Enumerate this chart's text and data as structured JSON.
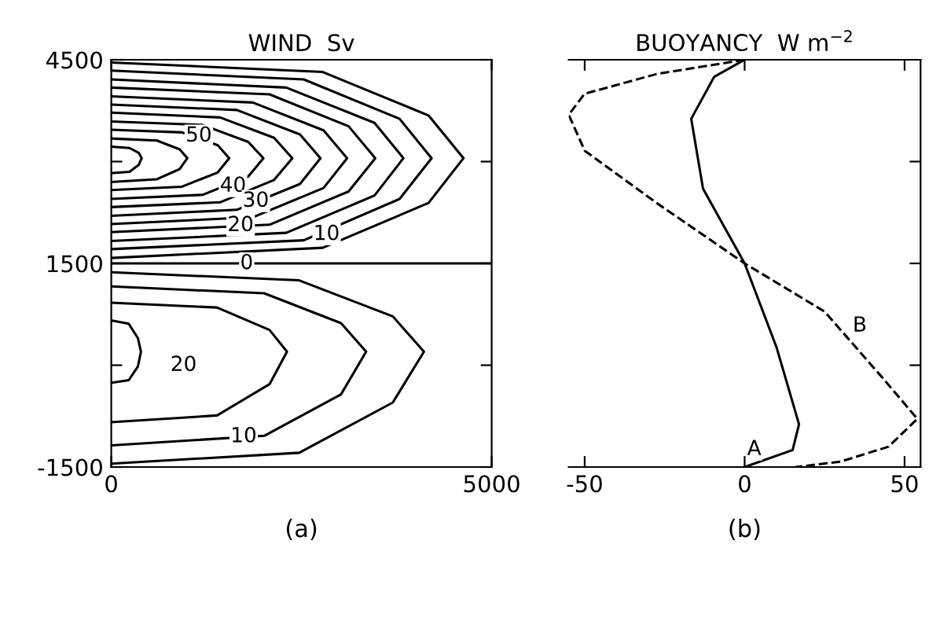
{
  "chart_data": [
    {
      "type": "line",
      "title": "WIND  Sv",
      "xlabel": "(a)",
      "line_style": "solid",
      "xlim": [
        0,
        5000
      ],
      "ylim": [
        -1500,
        4500
      ],
      "xticks": [
        0,
        5000
      ],
      "yticks": [
        -1500,
        {
          "value": 0,
          "label": null
        },
        1500,
        {
          "value": 3000,
          "label": null
        },
        4500
      ],
      "series": [
        {
          "color": "#000000",
          "x": [
            0,
            2780,
            4170,
            4630,
            4170,
            2780,
            0
          ],
          "values": [
            4460,
            4320,
            3680,
            3050,
            2390,
            1730,
            1580
          ]
        },
        {
          "color": "#000000",
          "x": [
            0,
            2530,
            3790,
            4210,
            3790,
            2530,
            0
          ],
          "values": [
            4340,
            4210,
            3630,
            3050,
            2450,
            1840,
            1710
          ]
        },
        {
          "color": "#000000",
          "x": [
            0,
            2300,
            3460,
            3840,
            3460,
            2300,
            0
          ],
          "values": [
            4210,
            4090,
            3570,
            3050,
            2500,
            1950,
            1830
          ]
        },
        {
          "color": "#000000",
          "x": [
            0,
            2080,
            3120,
            3470,
            3120,
            2080,
            0
          ],
          "values": [
            4090,
            3990,
            3520,
            3050,
            2560,
            2070,
            1960
          ]
        },
        {
          "color": "#000000",
          "x": [
            0,
            1860,
            2790,
            3100,
            2790,
            1860,
            0
          ],
          "values": [
            3960,
            3870,
            3460,
            3050,
            2610,
            2180,
            2080
          ]
        },
        {
          "color": "#000000",
          "x": [
            0,
            1650,
            2480,
            2750,
            2480,
            1650,
            0
          ],
          "values": [
            3840,
            3760,
            3400,
            3050,
            2670,
            2290,
            2200
          ]
        },
        {
          "color": "#000000",
          "x": [
            0,
            1430,
            2140,
            2380,
            2140,
            1430,
            0
          ],
          "values": [
            3720,
            3650,
            3350,
            3050,
            2730,
            2400,
            2330
          ]
        },
        {
          "color": "#000000",
          "x": [
            0,
            1200,
            1800,
            2000,
            1800,
            1200,
            0
          ],
          "values": [
            3590,
            3540,
            3290,
            3050,
            2780,
            2510,
            2450
          ]
        },
        {
          "color": "#000000",
          "x": [
            0,
            930,
            1400,
            1550,
            1400,
            930,
            0
          ],
          "values": [
            3470,
            3430,
            3240,
            3050,
            2840,
            2630,
            2580
          ]
        },
        {
          "color": "#000000",
          "x": [
            0,
            600,
            900,
            1000,
            900,
            600,
            0
          ],
          "values": [
            3340,
            3310,
            3180,
            3050,
            2890,
            2740,
            2700
          ]
        },
        {
          "color": "#000000",
          "x": [
            0,
            240,
            360,
            400,
            360,
            240,
            0
          ],
          "values": [
            3220,
            3200,
            3130,
            3050,
            2950,
            2850,
            2830
          ]
        },
        {
          "color": "#000000",
          "x": [
            0,
            5000
          ],
          "values": [
            1500,
            1500
          ]
        },
        {
          "color": "#000000",
          "x": [
            0,
            2470,
            3700,
            4110,
            3700,
            2470,
            0
          ],
          "values": [
            1370,
            1250,
            720,
            200,
            -550,
            -1290,
            -1450
          ]
        },
        {
          "color": "#000000",
          "x": [
            0,
            2010,
            3020,
            3350,
            3020,
            2010,
            0
          ],
          "values": [
            1160,
            1060,
            620,
            200,
            -430,
            -1040,
            -1180
          ]
        },
        {
          "color": "#000000",
          "x": [
            0,
            1390,
            2080,
            2310,
            2080,
            1390,
            0
          ],
          "values": [
            920,
            850,
            520,
            200,
            -280,
            -740,
            -840
          ]
        },
        {
          "color": "#000000",
          "x": [
            0,
            230,
            350,
            390,
            350,
            230,
            0
          ],
          "values": [
            660,
            610,
            400,
            200,
            -20,
            -220,
            -260
          ]
        }
      ],
      "annotations": [
        {
          "text": "50",
          "x": 1150,
          "y": 3380
        },
        {
          "text": "40",
          "x": 1600,
          "y": 2640
        },
        {
          "text": "30",
          "x": 1900,
          "y": 2420
        },
        {
          "text": "20",
          "x": 1700,
          "y": 2060
        },
        {
          "text": "10",
          "x": 2830,
          "y": 1930
        },
        {
          "text": "0",
          "x": 1780,
          "y": 1500
        },
        {
          "text": "20",
          "x": 950,
          "y": 0
        },
        {
          "text": "10",
          "x": 1740,
          "y": -1050
        }
      ]
    },
    {
      "type": "line",
      "title": "BUOYANCY  W m$^{−2}$",
      "xlabel": "(b)",
      "tick_labels": "x",
      "xlim": [
        -55,
        55
      ],
      "ylim": [
        -1500,
        4500
      ],
      "xticks": [
        -50,
        0,
        50
      ],
      "yticks": [
        {
          "value": 0,
          "label": null
        },
        {
          "value": 1500,
          "label": null
        },
        {
          "value": 3000,
          "label": null
        }
      ],
      "series": [
        {
          "color": "#000000",
          "line_style": "solid",
          "x": [
            0,
            -9.5,
            -16.7,
            -13,
            0,
            10,
            17,
            15,
            0
          ],
          "values": [
            4500,
            4250,
            3630,
            2600,
            1500,
            260,
            -870,
            -1250,
            -1500
          ]
        },
        {
          "color": "#000000",
          "line_style": "dashed",
          "x": [
            0,
            -27.5,
            -50,
            -55,
            -50,
            -27.5,
            0,
            25,
            43,
            54,
            45,
            30,
            16
          ],
          "values": [
            4500,
            4290,
            4000,
            3690,
            3160,
            2390,
            1500,
            790,
            -180,
            -790,
            -1200,
            -1420,
            -1500
          ]
        }
      ],
      "annotations": [
        {
          "text": "A",
          "x": 3,
          "y": -1240
        },
        {
          "text": "B",
          "x": 36,
          "y": 580
        }
      ]
    }
  ]
}
